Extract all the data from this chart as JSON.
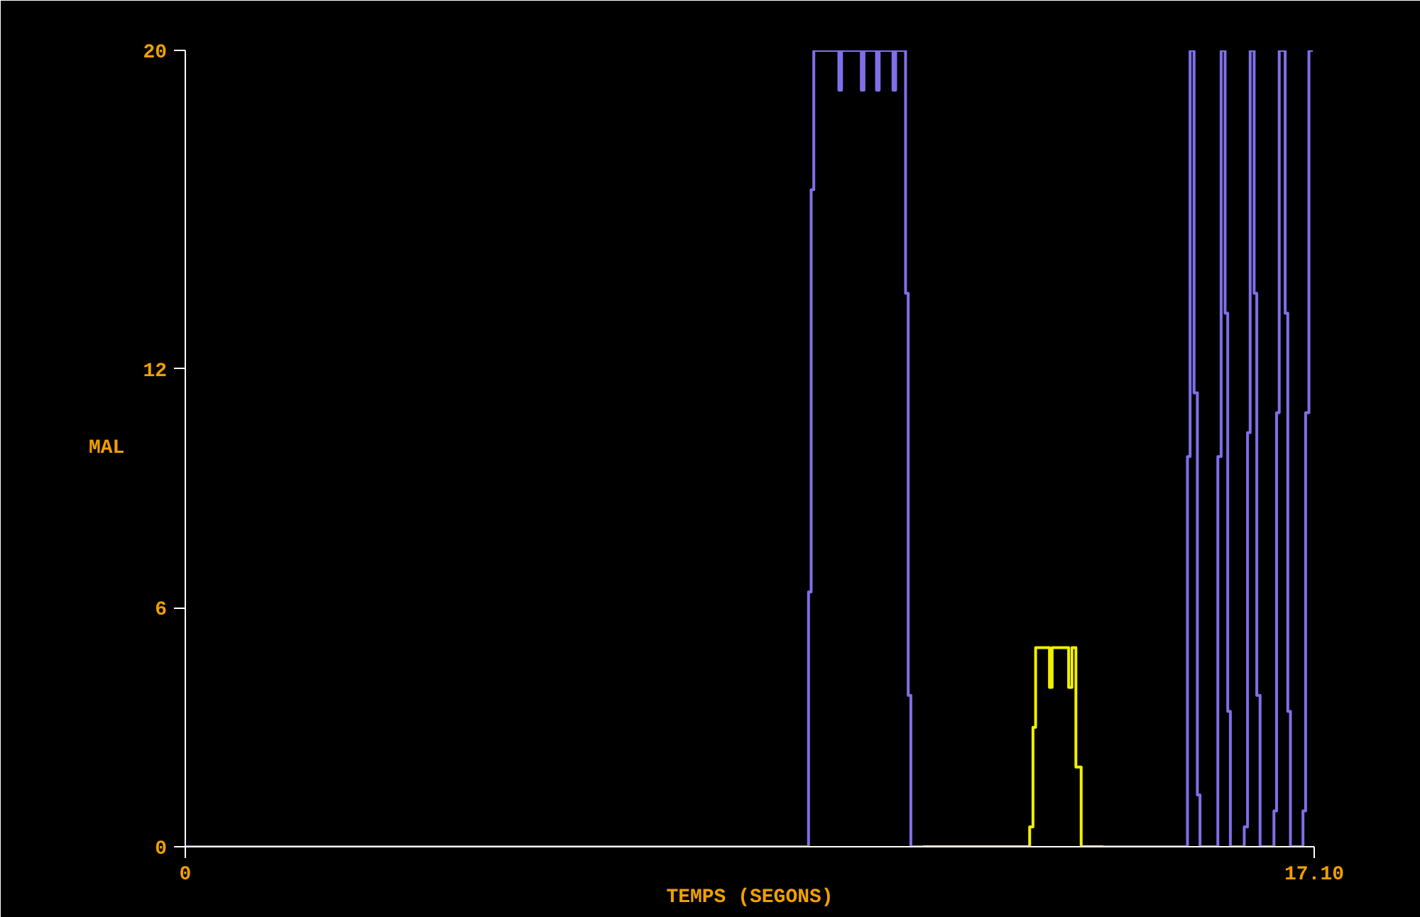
{
  "chart_data": {
    "type": "line",
    "xlabel": "TEMPS (SEGONS)",
    "ylabel": "MAL",
    "xlim": [
      0,
      17.1
    ],
    "ylim": [
      0,
      20
    ],
    "xticks": [
      0,
      {
        "value": 17.1,
        "label": "17.10"
      }
    ],
    "yticks": [
      0,
      6,
      12,
      20
    ],
    "grid": false,
    "marker": "none",
    "line_style": "solid",
    "series": [
      {
        "color": "#7f6fe8",
        "x": [
          0,
          9.44,
          9.44,
          9.48,
          9.48,
          9.52,
          9.52,
          9.9,
          9.9,
          9.94,
          9.94,
          10.24,
          10.24,
          10.28,
          10.28,
          10.47,
          10.47,
          10.51,
          10.51,
          10.72,
          10.72,
          10.76,
          10.76,
          10.91,
          10.91,
          10.95,
          10.95,
          10.99,
          10.99,
          11.17,
          12.5,
          13.91,
          15.18,
          15.18,
          15.22,
          15.22,
          15.28,
          15.28,
          15.33,
          15.33,
          15.37,
          15.37,
          15.64,
          15.64,
          15.69,
          15.69,
          15.75,
          15.75,
          15.79,
          15.79,
          15.83,
          15.83,
          16.04,
          16.04,
          16.09,
          16.09,
          16.13,
          16.13,
          16.19,
          16.19,
          16.23,
          16.23,
          16.28,
          16.28,
          16.49,
          16.49,
          16.53,
          16.53,
          16.57,
          16.57,
          16.66,
          16.66,
          16.7,
          16.7,
          16.74,
          16.74,
          16.93,
          16.93,
          16.97,
          16.97,
          17.02,
          17.02,
          17.08
        ],
        "values": [
          0,
          0,
          6.4,
          6.4,
          16.5,
          16.5,
          20,
          20,
          19,
          19,
          20,
          20,
          19,
          19,
          20,
          20,
          19,
          19,
          20,
          20,
          19,
          19,
          20,
          20,
          13.9,
          13.9,
          3.8,
          3.8,
          0,
          0,
          null,
          0,
          0,
          9.8,
          9.8,
          20,
          20,
          11.4,
          11.4,
          1.3,
          1.3,
          0,
          0,
          9.8,
          9.8,
          20,
          20,
          13.4,
          13.4,
          3.4,
          3.4,
          0,
          0,
          0.5,
          0.5,
          10.4,
          10.4,
          20,
          20,
          13.9,
          13.9,
          3.8,
          3.8,
          0,
          0,
          0.9,
          0.9,
          10.9,
          10.9,
          20,
          20,
          13.4,
          13.4,
          3.4,
          3.4,
          0,
          0,
          0.9,
          0.9,
          10.9,
          10.9,
          20,
          20
        ]
      },
      {
        "color": "#f0f000",
        "x": [
          11.17,
          12.79,
          12.79,
          12.84,
          12.84,
          12.88,
          12.88,
          13.09,
          13.09,
          13.13,
          13.13,
          13.38,
          13.38,
          13.43,
          13.43,
          13.49,
          13.49,
          13.57,
          13.57,
          13.91
        ],
        "values": [
          0,
          0,
          0.5,
          0.5,
          3,
          3,
          5,
          5,
          4,
          4,
          5,
          5,
          4,
          4,
          5,
          5,
          2,
          2,
          0,
          0
        ]
      }
    ]
  }
}
